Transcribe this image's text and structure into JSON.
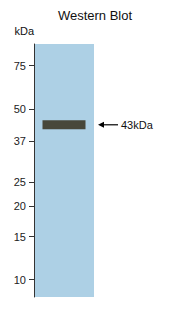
{
  "chart_data": {
    "type": "scatter",
    "title": "Western Blot",
    "ylabel": "kDa",
    "categories": [
      null
    ],
    "values": [
      43
    ],
    "color": "#3d3828",
    "marker": "band",
    "log": "y",
    "ylim": [
      8.5,
      92
    ],
    "yticks": [
      75,
      50,
      37,
      25,
      20,
      15,
      10
    ],
    "grid": false,
    "tick_labels": "y",
    "annotations": [
      {
        "text": "43kDa",
        "y": 43
      }
    ]
  }
}
